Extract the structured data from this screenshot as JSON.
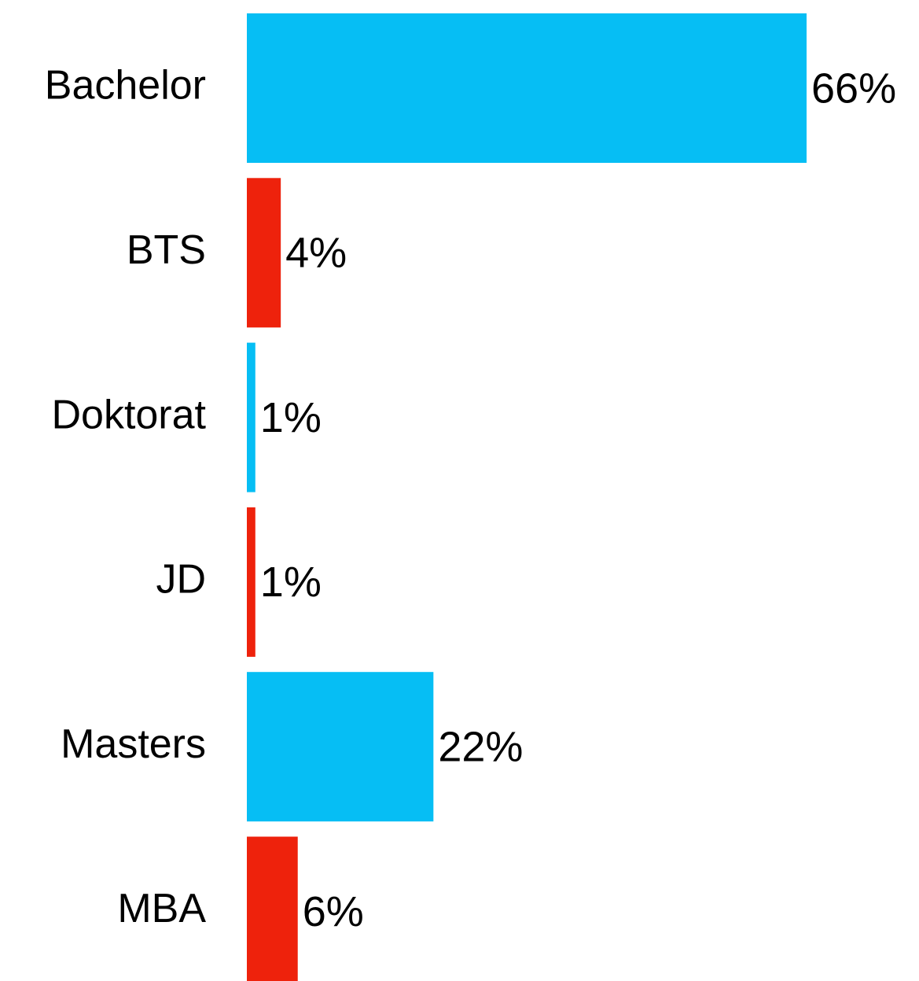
{
  "chart_data": {
    "type": "hbar",
    "categories": [
      "Bachelor",
      "BTS",
      "Doktorat",
      "JD",
      "Masters",
      "MBA"
    ],
    "values": [
      66,
      4,
      1,
      1,
      22,
      6
    ],
    "value_labels": [
      "66%",
      "4%",
      "1%",
      "1%",
      "22%",
      "6%"
    ],
    "colors": [
      "#06bef4",
      "#ee220c",
      "#06bef4",
      "#ee220c",
      "#06bef4",
      "#ee220c"
    ]
  }
}
